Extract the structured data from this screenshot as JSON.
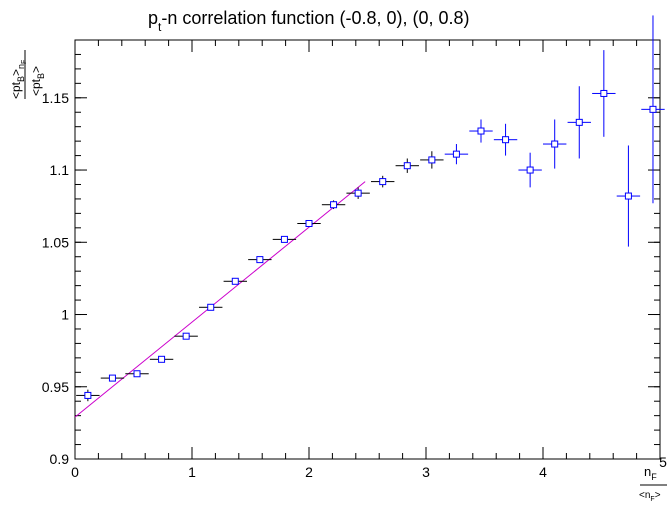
{
  "chart_data": {
    "type": "scatter",
    "title_main": "p",
    "title_sub": "t",
    "title_rest": "-n correlation function  (-0.8, 0), (0, 0.8)",
    "xlabel_num": "n",
    "xlabel_num_sub": "F",
    "xlabel_den": "<n",
    "xlabel_den_sub": "F",
    "xlabel_den_end": ">",
    "ylabel_num": "<pt",
    "ylabel_num_sub": "B",
    "ylabel_num_end": ">",
    "ylabel_num_end_sub": "n",
    "ylabel_num_end_subsub": "F",
    "ylabel_den": "<pt",
    "ylabel_den_sub": "B",
    "ylabel_den_end": ">",
    "xlim": [
      0,
      5
    ],
    "ylim": [
      0.9,
      1.19
    ],
    "x_ticks": [
      "0",
      "1",
      "2",
      "3",
      "4",
      "5"
    ],
    "y_ticks": [
      "0.9",
      "0.95",
      "1",
      "1.05",
      "1.1",
      "1.15"
    ],
    "marker_color": "#0000ff",
    "errorbar_color": "#000000",
    "far_errorbar_color": "#0000ff",
    "fit_color": "#cc00cc",
    "grid": false,
    "fit_line": {
      "x": [
        0.0,
        2.48
      ],
      "y": [
        0.929,
        1.092
      ]
    },
    "points": [
      {
        "x": 0.11,
        "y": 0.944,
        "xerr": 0.1,
        "yerr": 0.004
      },
      {
        "x": 0.32,
        "y": 0.956,
        "xerr": 0.1,
        "yerr": 0.002
      },
      {
        "x": 0.53,
        "y": 0.959,
        "xerr": 0.1,
        "yerr": 0.002
      },
      {
        "x": 0.74,
        "y": 0.969,
        "xerr": 0.1,
        "yerr": 0.002
      },
      {
        "x": 0.95,
        "y": 0.985,
        "xerr": 0.1,
        "yerr": 0.002
      },
      {
        "x": 1.16,
        "y": 1.005,
        "xerr": 0.1,
        "yerr": 0.002
      },
      {
        "x": 1.37,
        "y": 1.023,
        "xerr": 0.1,
        "yerr": 0.002
      },
      {
        "x": 1.58,
        "y": 1.038,
        "xerr": 0.1,
        "yerr": 0.002
      },
      {
        "x": 1.79,
        "y": 1.052,
        "xerr": 0.1,
        "yerr": 0.002
      },
      {
        "x": 2.0,
        "y": 1.063,
        "xerr": 0.1,
        "yerr": 0.002
      },
      {
        "x": 2.21,
        "y": 1.076,
        "xerr": 0.1,
        "yerr": 0.003
      },
      {
        "x": 2.42,
        "y": 1.084,
        "xerr": 0.1,
        "yerr": 0.004
      },
      {
        "x": 2.63,
        "y": 1.092,
        "xerr": 0.1,
        "yerr": 0.004
      },
      {
        "x": 2.84,
        "y": 1.103,
        "xerr": 0.1,
        "yerr": 0.005
      },
      {
        "x": 3.05,
        "y": 1.107,
        "xerr": 0.1,
        "yerr": 0.006
      },
      {
        "x": 3.26,
        "y": 1.111,
        "xerr": 0.1,
        "yerr": 0.007
      },
      {
        "x": 3.47,
        "y": 1.127,
        "xerr": 0.1,
        "yerr": 0.008
      },
      {
        "x": 3.68,
        "y": 1.121,
        "xerr": 0.1,
        "yerr": 0.011
      },
      {
        "x": 3.89,
        "y": 1.1,
        "xerr": 0.1,
        "yerr": 0.012
      },
      {
        "x": 4.1,
        "y": 1.118,
        "xerr": 0.1,
        "yerr": 0.017
      },
      {
        "x": 4.31,
        "y": 1.133,
        "xerr": 0.1,
        "yerr": 0.025
      },
      {
        "x": 4.52,
        "y": 1.153,
        "xerr": 0.1,
        "yerr": 0.03
      },
      {
        "x": 4.73,
        "y": 1.082,
        "xerr": 0.1,
        "yerr": 0.035
      },
      {
        "x": 4.94,
        "y": 1.142,
        "xerr": 0.1,
        "yerr": 0.065
      }
    ]
  }
}
